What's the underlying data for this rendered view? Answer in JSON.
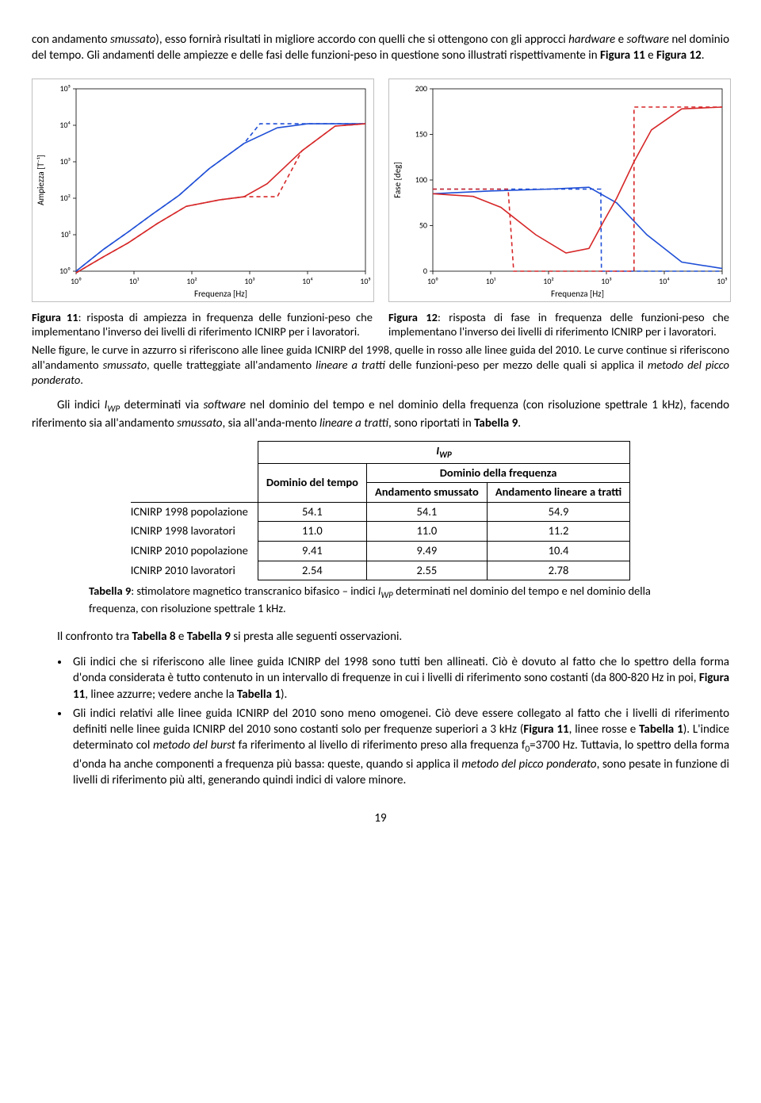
{
  "intro": {
    "part1_a": "con andamento ",
    "part1_i1": "smussato",
    "part1_b": "), esso fornirà risultati in migliore accordo con quelli che si ottengono con gli approcci ",
    "part1_i2": "hardware",
    "part1_c": " e ",
    "part1_i3": "software",
    "part1_d": " nel dominio del tempo. Gli andamenti delle ampiezze e delle fasi delle funzioni-peso in questione sono illustrati rispettivamente in ",
    "part1_b1": "Figura 11",
    "part1_e": " e ",
    "part1_b2": "Figura 12",
    "part1_f": "."
  },
  "chart_left": {
    "type": "line-loglog",
    "xlabel": "Frequenza [Hz]",
    "ylabel": "Ampiezza [T⁻¹]",
    "x_ticks": [
      "10⁰",
      "10¹",
      "10²",
      "10³",
      "10⁴",
      "10⁵"
    ],
    "y_ticks": [
      "10⁰",
      "10¹",
      "10²",
      "10³",
      "10⁴",
      "10⁵"
    ],
    "background_color": "#ffffff",
    "frame_color": "#bfbfbf",
    "grid": false,
    "series": [
      {
        "name": "ICNIRP1998-smooth",
        "color": "#1f4fd6",
        "dash": "none",
        "width": 1.6,
        "points": [
          [
            1,
            1.0
          ],
          [
            3,
            4.0
          ],
          [
            8,
            12
          ],
          [
            20,
            35
          ],
          [
            60,
            120
          ],
          [
            200,
            650
          ],
          [
            800,
            3200
          ],
          [
            3000,
            8500
          ],
          [
            10000,
            11000
          ],
          [
            100000,
            11000
          ]
        ]
      },
      {
        "name": "ICNIRP1998-piecewise",
        "color": "#1f4fd6",
        "dash": "5,4",
        "width": 1.6,
        "points": [
          [
            1,
            1.0
          ],
          [
            3,
            4.0
          ],
          [
            8,
            12
          ],
          [
            20,
            35
          ],
          [
            60,
            120
          ],
          [
            200,
            650
          ],
          [
            800,
            3200
          ],
          [
            1500,
            11000
          ],
          [
            10000,
            11000
          ],
          [
            100000,
            11000
          ]
        ]
      },
      {
        "name": "ICNIRP2010-smooth",
        "color": "#d62728",
        "dash": "none",
        "width": 1.6,
        "points": [
          [
            1,
            0.9
          ],
          [
            3,
            2.5
          ],
          [
            8,
            6
          ],
          [
            25,
            20
          ],
          [
            80,
            60
          ],
          [
            300,
            90
          ],
          [
            800,
            110
          ],
          [
            2000,
            250
          ],
          [
            8000,
            2000
          ],
          [
            30000,
            9500
          ],
          [
            100000,
            11000
          ]
        ]
      },
      {
        "name": "ICNIRP2010-piecewise",
        "color": "#d62728",
        "dash": "5,4",
        "width": 1.6,
        "points": [
          [
            1,
            0.9
          ],
          [
            3,
            2.5
          ],
          [
            8,
            6
          ],
          [
            25,
            20
          ],
          [
            80,
            60
          ],
          [
            300,
            90
          ],
          [
            800,
            110
          ],
          [
            3000,
            110
          ],
          [
            8000,
            2000
          ],
          [
            30000,
            9500
          ],
          [
            100000,
            11000
          ]
        ]
      }
    ]
  },
  "chart_right": {
    "type": "line-logx",
    "xlabel": "Frequenza [Hz]",
    "ylabel": "Fase [deg]",
    "x_ticks": [
      "10⁰",
      "10¹",
      "10²",
      "10³",
      "10⁴",
      "10⁵"
    ],
    "y_ticks": [
      "0",
      "50",
      "100",
      "150",
      "200"
    ],
    "ylim": [
      0,
      200
    ],
    "background_color": "#ffffff",
    "frame_color": "#bfbfbf",
    "series": [
      {
        "name": "ICNIRP1998-smooth",
        "color": "#1f4fd6",
        "dash": "none",
        "width": 1.6,
        "points": [
          [
            1,
            85
          ],
          [
            10,
            88
          ],
          [
            100,
            90
          ],
          [
            500,
            92
          ],
          [
            1500,
            75
          ],
          [
            5000,
            40
          ],
          [
            20000,
            10
          ],
          [
            100000,
            3
          ]
        ]
      },
      {
        "name": "ICNIRP1998-piecewise",
        "color": "#1f4fd6",
        "dash": "5,4",
        "width": 1.6,
        "points": [
          [
            1,
            90
          ],
          [
            10,
            90
          ],
          [
            100,
            90
          ],
          [
            800,
            90
          ],
          [
            820,
            0
          ],
          [
            100000,
            0
          ]
        ]
      },
      {
        "name": "ICNIRP2010-smooth",
        "color": "#d62728",
        "dash": "none",
        "width": 1.6,
        "points": [
          [
            1,
            85
          ],
          [
            5,
            82
          ],
          [
            15,
            70
          ],
          [
            60,
            40
          ],
          [
            200,
            20
          ],
          [
            500,
            25
          ],
          [
            900,
            55
          ],
          [
            1500,
            80
          ],
          [
            3000,
            120
          ],
          [
            6000,
            155
          ],
          [
            20000,
            178
          ],
          [
            100000,
            180
          ]
        ]
      },
      {
        "name": "ICNIRP2010-piecewise",
        "color": "#d62728",
        "dash": "5,4",
        "width": 1.6,
        "points": [
          [
            1,
            90
          ],
          [
            20,
            90
          ],
          [
            25,
            0
          ],
          [
            800,
            0
          ],
          [
            3000,
            0
          ],
          [
            3001,
            180
          ],
          [
            100000,
            180
          ]
        ]
      }
    ]
  },
  "fig11": {
    "label": "Figura 11",
    "text": ": risposta di ampiezza in frequenza delle funzioni-peso che implementano l'inverso dei livelli di riferimento ICNIRP per i lavoratori."
  },
  "fig12": {
    "label": "Figura 12",
    "text": ": risposta di fase in frequenza delle funzioni-peso che implementano l'inverso dei livelli di riferimento ICNIRP per i lavoratori."
  },
  "fig_note": {
    "a": "Nelle figure, le curve in azzurro si riferiscono alle linee guida ICNIRP del 1998, quelle in rosso alle linee guida del 2010. Le curve continue si riferiscono all'andamento ",
    "i1": "smussato",
    "b": ", quelle tratteggiate all'andamento ",
    "i2": "lineare a tratti",
    "c": " delle funzioni-peso per mezzo delle quali si applica il ",
    "i3": "metodo del picco ponderato",
    "d": "."
  },
  "mid_para": {
    "a": "Gli indici ",
    "i1": "I",
    "sub1": "WP",
    "b": " determinati via ",
    "i2": "software",
    "c": " nel dominio del tempo e nel dominio della frequenza (con risoluzione spettrale 1 kHz), facendo riferimento sia all'andamento ",
    "i3": "smussato",
    "d": ", sia all'anda-mento ",
    "i4": "lineare a tratti",
    "e": ", sono riportati in ",
    "b1": "Tabella 9",
    "f": "."
  },
  "table": {
    "iwp": "I",
    "iwp_sub": "WP",
    "h_time": "Dominio del tempo",
    "h_freq": "Dominio della frequenza",
    "h_smooth": "Andamento smussato",
    "h_piece": "Andamento lineare a tratti",
    "rows": [
      {
        "label": "ICNIRP 1998 popolazione",
        "t": "54.1",
        "s": "54.1",
        "p": "54.9"
      },
      {
        "label": "ICNIRP 1998 lavoratori",
        "t": "11.0",
        "s": "11.0",
        "p": "11.2"
      },
      {
        "label": "ICNIRP 2010 popolazione",
        "t": "9.41",
        "s": "9.49",
        "p": "10.4"
      },
      {
        "label": "ICNIRP 2010 lavoratori",
        "t": "2.54",
        "s": "2.55",
        "p": "2.78"
      }
    ]
  },
  "table_caption": {
    "b1": "Tabella 9",
    "a": ": stimolatore magnetico transcranico bifasico – indici ",
    "i1": "I",
    "sub1": "WP",
    "b": " determinati nel dominio del tempo e nel dominio della frequenza, con risoluzione spettrale 1 kHz."
  },
  "obs_intro": {
    "a": "Il confronto tra ",
    "b1": "Tabella 8",
    "b": " e ",
    "b2": "Tabella 9",
    "c": " si presta alle seguenti osservazioni."
  },
  "bullets": {
    "b1_a": "Gli indici che si riferiscono alle linee guida ICNIRP del 1998 sono tutti ben allineati. Ciò è dovuto al fatto che lo spettro della forma d'onda considerata è tutto contenuto in un intervallo di frequenze in cui i livelli di riferimento sono costanti (da 800-820 Hz in poi, ",
    "b1_bold1": "Figura 11",
    "b1_b": ", linee azzurre; vedere anche la ",
    "b1_bold2": "Tabella 1",
    "b1_c": ").",
    "b2_a": "Gli indici relativi alle linee guida ICNIRP del 2010 sono meno omogenei. Ciò deve essere collegato al fatto che i livelli di riferimento definiti nelle linee guida ICNIRP del 2010 sono costanti solo per frequenze superiori a 3 kHz (",
    "b2_bold1": "Figura 11",
    "b2_b": ", linee rosse e ",
    "b2_bold2": "Tabella 1",
    "b2_c": "). L'indice determinato col ",
    "b2_i1": "metodo del burst",
    "b2_d": " fa riferimento al livello di riferimento preso alla frequenza f",
    "b2_sub": "0",
    "b2_e": "=3700 Hz. Tuttavia, lo spettro della forma d'onda ha anche componenti a frequenza più bassa: queste, quando si applica il ",
    "b2_i2": "metodo del picco ponderato",
    "b2_f": ", sono pesate in funzione di livelli di riferimento più alti, generando quindi indici di valore minore."
  },
  "page_number": "19"
}
